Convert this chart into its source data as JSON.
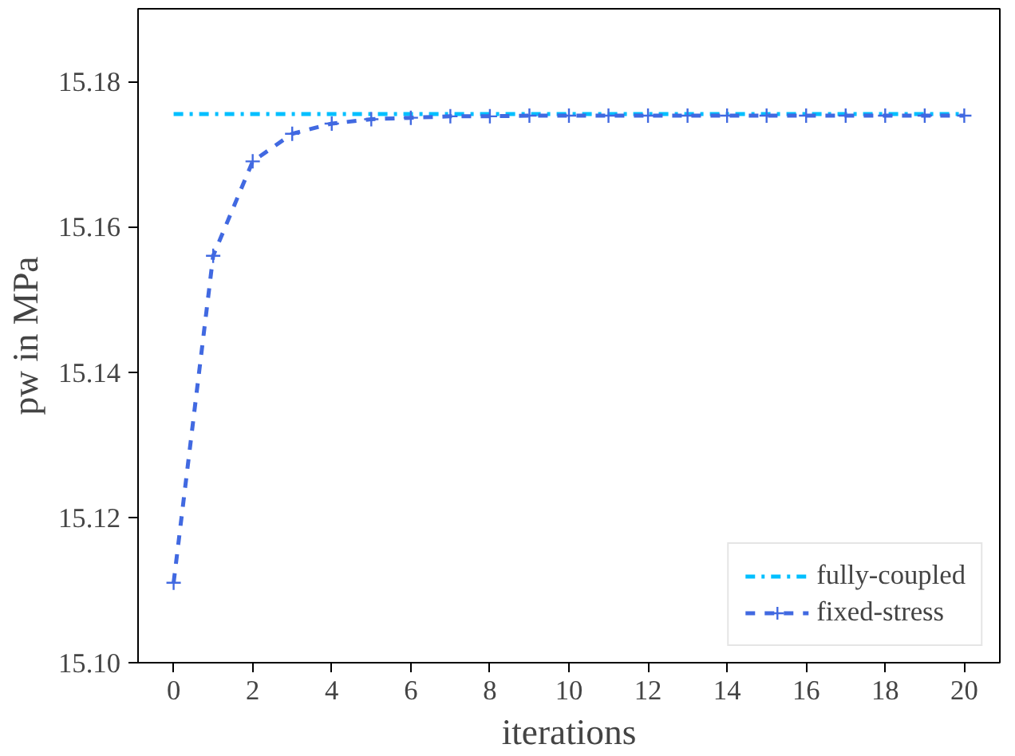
{
  "chart_data": {
    "type": "line",
    "xlabel": "iterations",
    "ylabel": "pw in MPa",
    "xlim": [
      -0.9,
      20.9
    ],
    "ylim": [
      15.1,
      15.19
    ],
    "xticks": [
      0,
      2,
      4,
      6,
      8,
      10,
      12,
      14,
      16,
      18,
      20
    ],
    "yticks": [
      {
        "value": 15.1,
        "label": "15.10"
      },
      {
        "value": 15.12,
        "label": "15.12"
      },
      {
        "value": 15.14,
        "label": "15.14"
      },
      {
        "value": 15.16,
        "label": "15.16"
      },
      {
        "value": 15.18,
        "label": "15.18"
      }
    ],
    "grid": false,
    "legend": "bottom right",
    "series": [
      {
        "name": "fully-coupled",
        "color": "#00bfff",
        "line_style": "dashdot",
        "marker": "none",
        "x": [
          0,
          20
        ],
        "values": [
          15.1755,
          15.1755
        ]
      },
      {
        "name": "fixed-stress",
        "color": "#4169e1",
        "line_style": "dashed",
        "marker": "cross",
        "x": [
          0,
          1,
          2,
          3,
          4,
          5,
          6,
          7,
          8,
          9,
          10,
          11,
          12,
          13,
          14,
          15,
          16,
          17,
          18,
          19,
          20
        ],
        "values": [
          15.111,
          15.156,
          15.169,
          15.1728,
          15.1742,
          15.1748,
          15.175,
          15.1752,
          15.1752,
          15.1753,
          15.1753,
          15.1753,
          15.1753,
          15.1753,
          15.1753,
          15.1753,
          15.1753,
          15.1753,
          15.1753,
          15.1753,
          15.1753
        ]
      }
    ]
  }
}
